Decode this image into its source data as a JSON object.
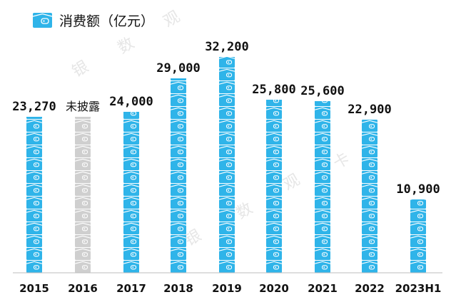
{
  "legend": {
    "label": "消费额（亿元）",
    "icon": "wallet-icon"
  },
  "watermarks": [
    {
      "text": "银"
    },
    {
      "text": "数"
    },
    {
      "text": "观"
    },
    {
      "text": "银"
    },
    {
      "text": "数"
    },
    {
      "text": "观"
    },
    {
      "text": "卡"
    }
  ],
  "colors": {
    "primary": "#2FB4E9",
    "undisclosed": "#CFCFCF",
    "baseline": "#BDBDBD",
    "text": "#111111",
    "watermark": "#E6E6E6"
  },
  "chart_data": {
    "type": "bar",
    "categories": [
      "2015",
      "2016",
      "2017",
      "2018",
      "2019",
      "2020",
      "2021",
      "2022",
      "2023H1"
    ],
    "values": [
      23270,
      null,
      24000,
      29000,
      32200,
      25800,
      25600,
      22900,
      10900
    ],
    "value_labels": [
      "23,270",
      "未披露",
      "24,000",
      "29,000",
      "32,200",
      "25,800",
      "25,600",
      "22,900",
      "10,900"
    ],
    "series": [
      {
        "name": "消费额（亿元）",
        "values": [
          23270,
          null,
          24000,
          29000,
          32200,
          25800,
          25600,
          22900,
          10900
        ]
      }
    ],
    "undisclosed": [
      false,
      true,
      false,
      false,
      false,
      false,
      false,
      false,
      false
    ],
    "ylim": [
      0,
      32200
    ],
    "grid": false,
    "legend_position": "top-left"
  }
}
